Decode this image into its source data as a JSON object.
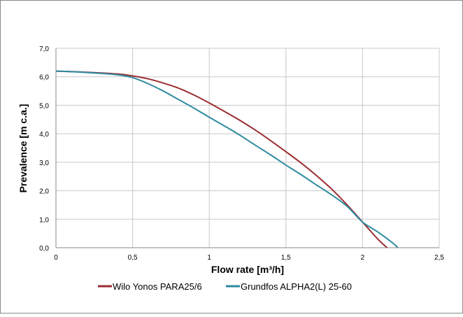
{
  "chart_data": {
    "type": "line",
    "title": "",
    "xlabel": "Flow rate [m³/h]",
    "ylabel": "Prevalence  [m  c.a.]",
    "xlim": [
      0,
      2.5
    ],
    "ylim": [
      0,
      7
    ],
    "x_ticks": [
      "0",
      "0,5",
      "1",
      "1,5",
      "2",
      "2,5"
    ],
    "y_ticks": [
      "0,0",
      "1,0",
      "2,0",
      "3,0",
      "4,0",
      "5,0",
      "6,0",
      "7,0"
    ],
    "grid": true,
    "legend_position": "bottom",
    "series": [
      {
        "name": "Wilo Yonos PARA25/6",
        "color": "#9b2d30",
        "points": [
          [
            0,
            6.2
          ],
          [
            0.2,
            6.16
          ],
          [
            0.4,
            6.1
          ],
          [
            0.5,
            6.03
          ],
          [
            0.6,
            5.93
          ],
          [
            0.7,
            5.78
          ],
          [
            0.8,
            5.6
          ],
          [
            0.9,
            5.36
          ],
          [
            1.0,
            5.08
          ],
          [
            1.1,
            4.78
          ],
          [
            1.2,
            4.47
          ],
          [
            1.3,
            4.13
          ],
          [
            1.4,
            3.76
          ],
          [
            1.5,
            3.37
          ],
          [
            1.6,
            2.97
          ],
          [
            1.7,
            2.53
          ],
          [
            1.8,
            2.05
          ],
          [
            1.9,
            1.5
          ],
          [
            2.0,
            0.9
          ],
          [
            2.1,
            0.3
          ],
          [
            2.16,
            0.0
          ]
        ]
      },
      {
        "name": "Grundfos ALPHA2(L) 25-60",
        "color": "#2e8ba0",
        "points": [
          [
            0,
            6.2
          ],
          [
            0.2,
            6.15
          ],
          [
            0.4,
            6.07
          ],
          [
            0.5,
            5.97
          ],
          [
            0.6,
            5.76
          ],
          [
            0.7,
            5.5
          ],
          [
            0.8,
            5.2
          ],
          [
            0.9,
            4.9
          ],
          [
            1.0,
            4.58
          ],
          [
            1.1,
            4.27
          ],
          [
            1.2,
            3.95
          ],
          [
            1.3,
            3.6
          ],
          [
            1.4,
            3.26
          ],
          [
            1.5,
            2.9
          ],
          [
            1.6,
            2.56
          ],
          [
            1.7,
            2.2
          ],
          [
            1.8,
            1.85
          ],
          [
            1.9,
            1.45
          ],
          [
            2.0,
            0.9
          ],
          [
            2.1,
            0.55
          ],
          [
            2.2,
            0.15
          ],
          [
            2.23,
            0.0
          ]
        ]
      }
    ]
  }
}
